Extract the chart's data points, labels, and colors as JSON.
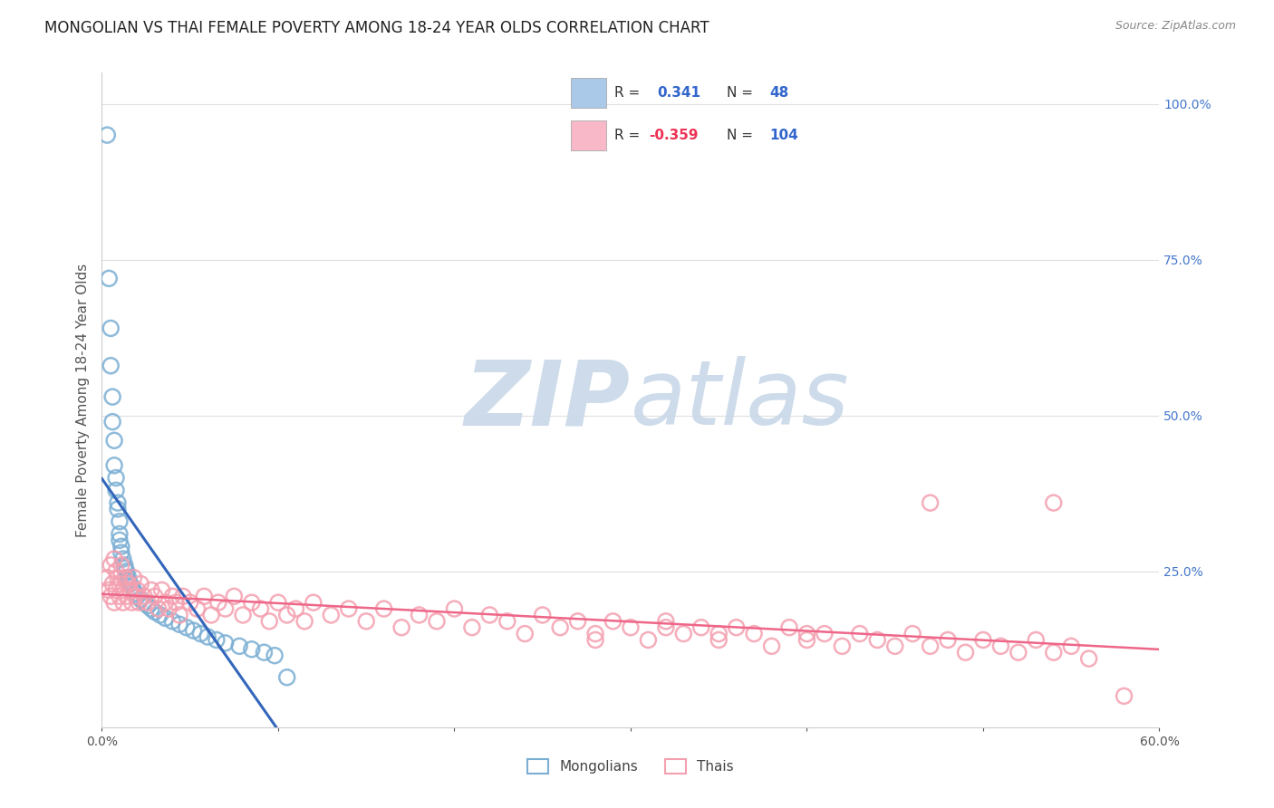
{
  "title": "MONGOLIAN VS THAI FEMALE POVERTY AMONG 18-24 YEAR OLDS CORRELATION CHART",
  "source": "Source: ZipAtlas.com",
  "ylabel": "Female Poverty Among 18-24 Year Olds",
  "xlim": [
    0.0,
    0.6
  ],
  "ylim": [
    0.0,
    1.05
  ],
  "mongolian_color": "#7BAFD4",
  "mongolian_edge_color": "#5590BB",
  "thai_color": "#F4A0B0",
  "thai_edge_color": "#E07090",
  "mongolian_line_color": "#3366BB",
  "thai_line_color": "#EE6688",
  "legend_fill_mongolian": "#AAC8E8",
  "legend_fill_thai": "#F8B8C8",
  "R_mongolian": "0.341",
  "N_mongolian": "48",
  "R_thai": "-0.359",
  "N_thai": "104",
  "background_color": "#FFFFFF",
  "grid_color": "#E0E0E0",
  "title_fontsize": 12,
  "axis_label_fontsize": 11,
  "tick_fontsize": 10,
  "watermark_zip": "ZIP",
  "watermark_atlas": "atlas",
  "watermark_color": "#C8D8E8",
  "right_tick_color": "#4477CC"
}
